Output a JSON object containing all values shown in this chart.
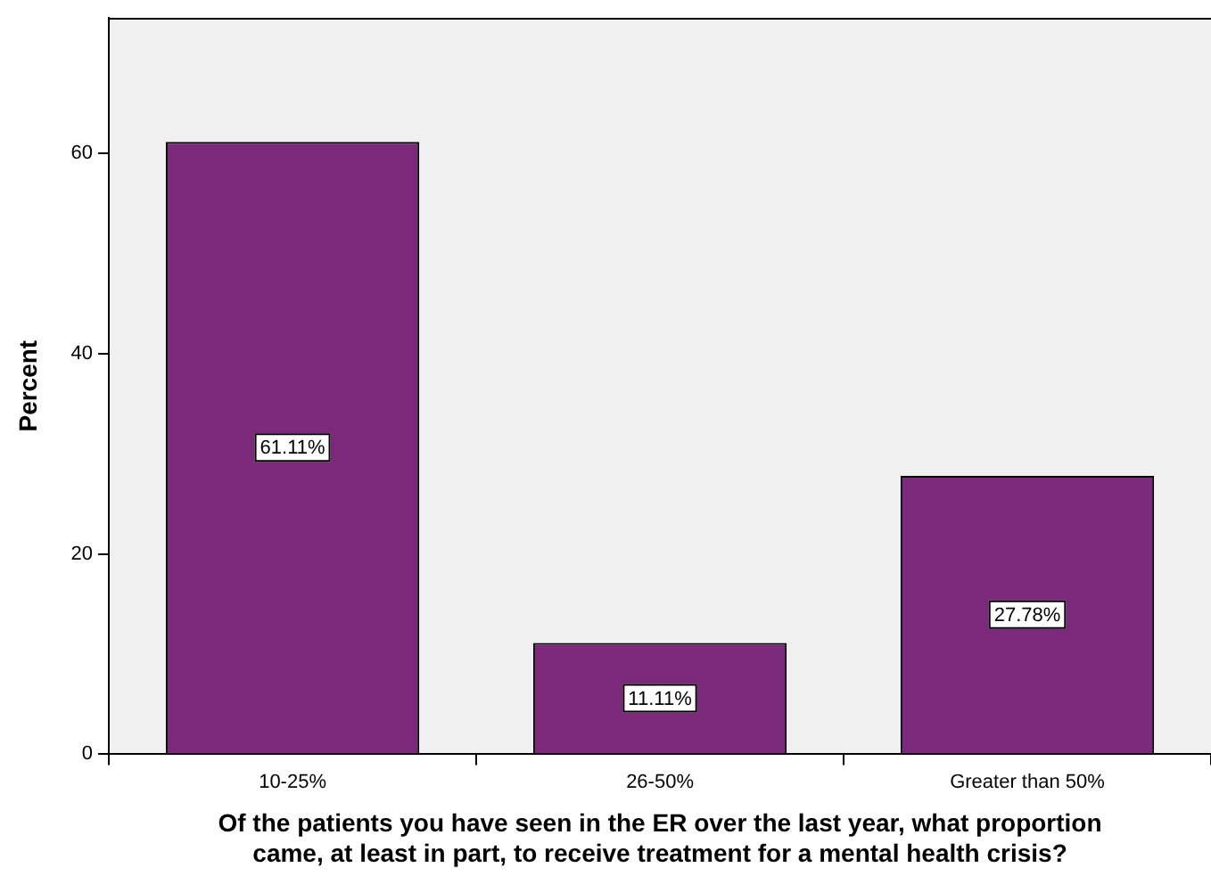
{
  "chart_data": {
    "type": "bar",
    "xlabel": "Of the patients you have seen in the ER over the last year, what proportion\ncame, at least in part, to receive treatment for a mental health crisis?",
    "ylabel": "Percent",
    "categories": [
      "10-25%",
      "26-50%",
      "Greater than 50%"
    ],
    "values": [
      61.11,
      11.11,
      27.78
    ],
    "value_labels": [
      "61.11%",
      "11.11%",
      "27.78%"
    ],
    "color": "#7b2a7b",
    "ylim": [
      0,
      73.5
    ],
    "yticks": [
      0,
      20,
      40,
      60
    ],
    "grid": false,
    "legend": false
  }
}
